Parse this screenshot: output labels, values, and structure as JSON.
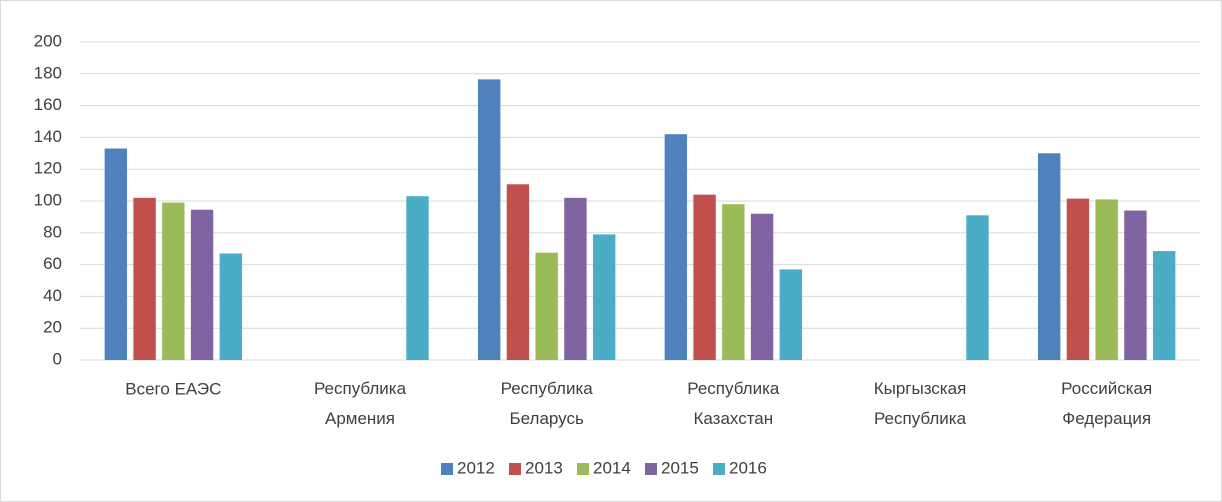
{
  "chart_data": {
    "type": "bar",
    "categories": [
      "Всего ЕАЭС",
      "Республика\nАрмения",
      "Республика\nБеларусь",
      "Республика\nКазахстан",
      "Кыргызская\nРеспублика",
      "Российская\nФедерация"
    ],
    "series": [
      {
        "name": "2012",
        "color": "#4f81bd",
        "values": [
          133,
          null,
          176.5,
          142,
          null,
          130
        ]
      },
      {
        "name": "2013",
        "color": "#c0504d",
        "values": [
          102,
          null,
          110.5,
          104,
          null,
          101.5
        ]
      },
      {
        "name": "2014",
        "color": "#9bbb59",
        "values": [
          99,
          null,
          67.5,
          98,
          null,
          101
        ]
      },
      {
        "name": "2015",
        "color": "#8064a2",
        "values": [
          94.5,
          null,
          102,
          92,
          null,
          94
        ]
      },
      {
        "name": "2016",
        "color": "#4bacc6",
        "values": [
          67,
          103,
          79,
          57,
          91,
          68.5
        ]
      }
    ],
    "ylim": [
      0,
      200
    ],
    "yticks": [
      0,
      20,
      40,
      60,
      80,
      100,
      120,
      140,
      160,
      180,
      200
    ],
    "grid": true,
    "legend": "bottom"
  }
}
